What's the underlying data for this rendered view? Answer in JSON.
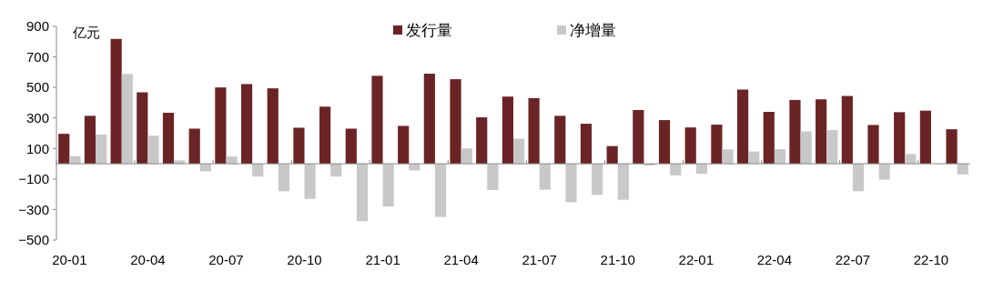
{
  "chart_data": {
    "type": "bar",
    "ylabel": "亿元",
    "legend": "top",
    "categories": [
      "20-01",
      null,
      null,
      "20-04",
      null,
      null,
      "20-07",
      null,
      null,
      "20-10",
      null,
      null,
      "21-01",
      null,
      null,
      "21-04",
      null,
      null,
      "21-07",
      null,
      null,
      "21-10",
      null,
      null,
      "22-01",
      null,
      null,
      "22-04",
      null,
      null,
      "22-07",
      null,
      null,
      "22-10",
      null
    ],
    "series": [
      {
        "name": "发行量",
        "color": "#6b2425",
        "values": [
          196,
          314,
          818,
          468,
          334,
          230,
          500,
          522,
          494,
          236,
          374,
          230,
          576,
          248,
          590,
          554,
          304,
          440,
          430,
          314,
          262,
          116,
          352,
          286,
          238,
          256,
          486,
          340,
          418,
          422,
          444,
          254,
          338,
          348,
          226
        ]
      },
      {
        "name": "净增量",
        "color": "#c8c8c8",
        "values": [
          50,
          192,
          588,
          184,
          22,
          -50,
          48,
          -84,
          -180,
          -230,
          -84,
          -376,
          -280,
          -44,
          -348,
          100,
          -172,
          164,
          -170,
          -252,
          -204,
          -236,
          -12,
          -76,
          -66,
          94,
          80,
          96,
          212,
          220,
          -180,
          -104,
          64,
          null,
          -70
        ]
      }
    ],
    "ylim": [
      -500,
      900
    ],
    "yticks": [
      -500,
      -300,
      -100,
      100,
      300,
      500,
      700,
      900
    ]
  }
}
